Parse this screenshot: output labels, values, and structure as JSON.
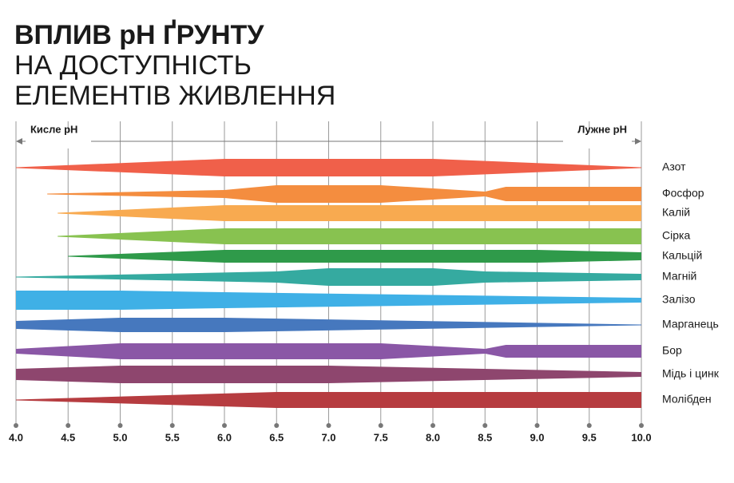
{
  "chart_data": {
    "type": "band",
    "title_lines": [
      "ВПЛИВ pH ҐРУНТУ",
      "НА ДОСТУПНІСТЬ",
      "ЕЛЕМЕНТІВ ЖИВЛЕННЯ"
    ],
    "acid_label": "Кисле pH",
    "alkaline_label": "Лужне pH",
    "xlim": [
      4,
      10
    ],
    "xticks": [
      {
        "value": 4,
        "label": "4.0"
      },
      {
        "value": 4.5,
        "label": "4.5"
      },
      {
        "value": 5,
        "label": "5.0"
      },
      {
        "value": 5.5,
        "label": "5.5"
      },
      {
        "value": 6,
        "label": "6.0"
      },
      {
        "value": 6.5,
        "label": "6.5"
      },
      {
        "value": 7,
        "label": "7.0"
      },
      {
        "value": 7.5,
        "label": "7.5"
      },
      {
        "value": 8,
        "label": "8.0"
      },
      {
        "value": 8.5,
        "label": "8.5"
      },
      {
        "value": 9,
        "label": "9.0"
      },
      {
        "value": 9.5,
        "label": "9.5"
      },
      {
        "value": 10,
        "label": "10.0"
      }
    ],
    "grid": true,
    "series": [
      {
        "name": "Азот",
        "color": "#f0604a",
        "x": [
          4.0,
          6.0,
          8.0,
          10.0
        ],
        "values": [
          1,
          22,
          22,
          1
        ]
      },
      {
        "name": "Фосфор",
        "color": "#f48d3f",
        "x": [
          4.3,
          6.0,
          6.5,
          7.5,
          8.5,
          8.7,
          10.0
        ],
        "values": [
          1,
          10,
          22,
          22,
          6,
          18,
          18
        ]
      },
      {
        "name": "Калій",
        "color": "#f8aa50",
        "x": [
          4.4,
          6.0,
          10.0
        ],
        "values": [
          1,
          20,
          20
        ]
      },
      {
        "name": "Сірка",
        "color": "#88c250",
        "x": [
          4.4,
          6.0,
          10.0
        ],
        "values": [
          1,
          20,
          20
        ]
      },
      {
        "name": "Кальцій",
        "color": "#2f9a4a",
        "x": [
          4.5,
          6.0,
          9.0,
          10.0
        ],
        "values": [
          1,
          16,
          16,
          10
        ]
      },
      {
        "name": "Магній",
        "color": "#35aaa0",
        "x": [
          4.0,
          6.5,
          7.0,
          8.0,
          8.5,
          10.0
        ],
        "values": [
          1,
          14,
          22,
          22,
          14,
          8
        ]
      },
      {
        "name": "Залізо",
        "color": "#3fb0e6",
        "x": [
          4.0,
          5.0,
          6.0,
          10.0
        ],
        "values": [
          24,
          24,
          20,
          6
        ]
      },
      {
        "name": "Марганець",
        "color": "#4678be",
        "x": [
          4.0,
          5.0,
          6.0,
          10.0
        ],
        "values": [
          10,
          18,
          18,
          1
        ]
      },
      {
        "name": "Бор",
        "color": "#8a57a6",
        "x": [
          4.0,
          5.0,
          7.5,
          8.5,
          8.7,
          10.0
        ],
        "values": [
          6,
          20,
          20,
          6,
          16,
          16
        ]
      },
      {
        "name": "Мідь і цинк",
        "color": "#8e466e",
        "x": [
          4.0,
          5.0,
          7.0,
          10.0
        ],
        "values": [
          14,
          22,
          22,
          6
        ]
      },
      {
        "name": "Молібден",
        "color": "#b63c40",
        "x": [
          4.0,
          6.5,
          10.0
        ],
        "values": [
          1,
          20,
          20
        ]
      }
    ]
  }
}
